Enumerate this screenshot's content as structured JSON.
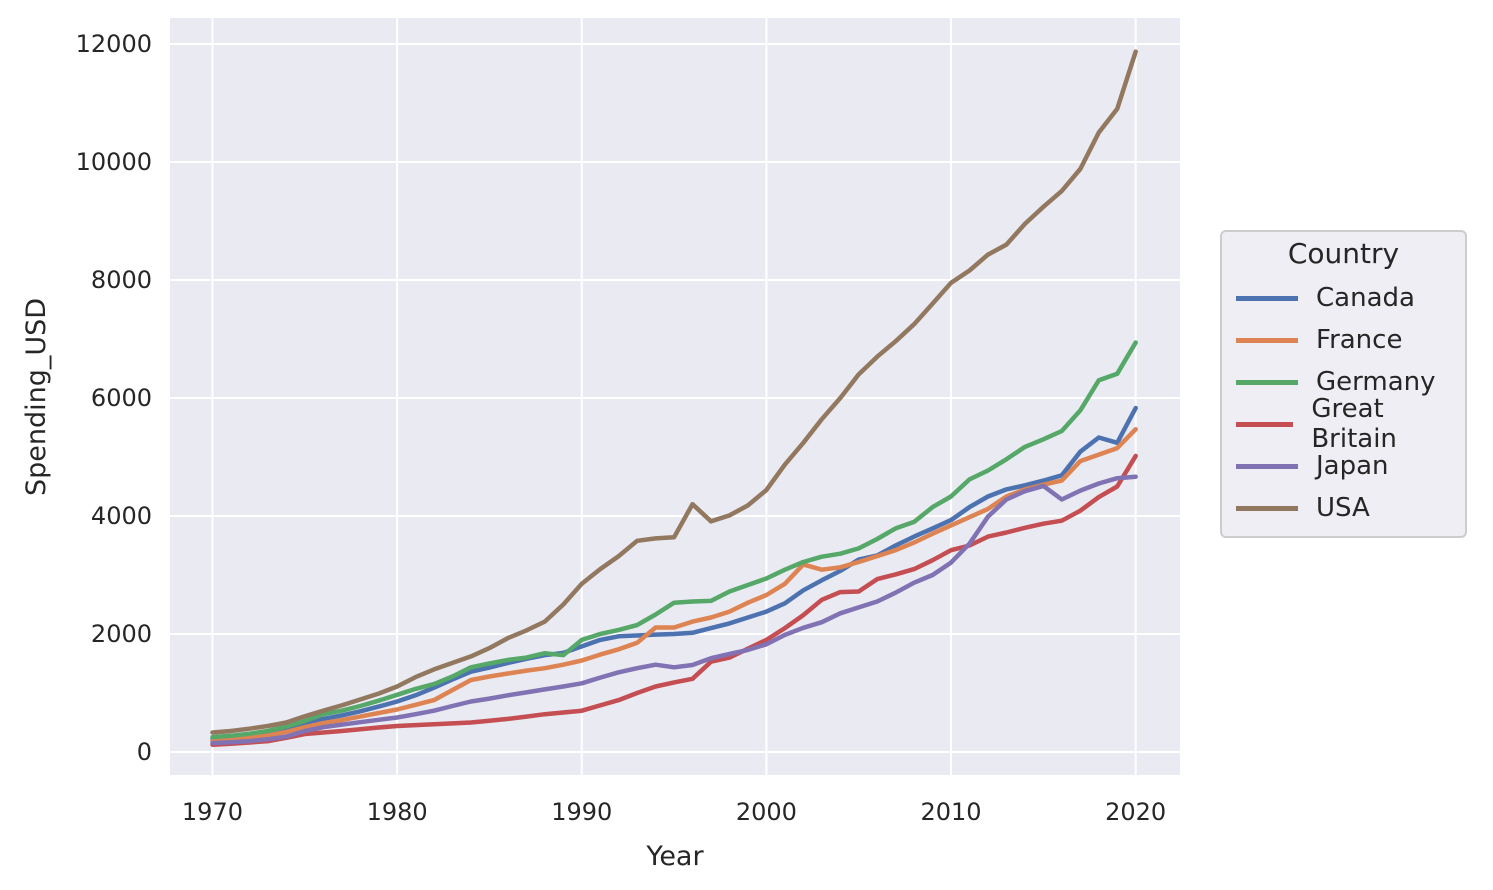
{
  "style": {
    "figure_bg": "#ffffff",
    "plot_bg": "#eaeaf2",
    "grid_color": "#ffffff",
    "text_color": "#262626",
    "legend_bg": "#eeeef4",
    "legend_border": "#cccccc",
    "line_width": 4.5
  },
  "chart_data": {
    "type": "line",
    "title": "",
    "xlabel": "Year",
    "ylabel": "Spending_USD",
    "legend": {
      "title": "Country",
      "position": "right-outside"
    },
    "grid": true,
    "x_ticks": [
      1970,
      1980,
      1990,
      2000,
      2010,
      2020
    ],
    "y_ticks": [
      0,
      2000,
      4000,
      6000,
      8000,
      10000,
      12000
    ],
    "xlim": [
      1967.7,
      2022.4
    ],
    "ylim": [
      -390,
      12440
    ],
    "x": [
      1970,
      1971,
      1972,
      1973,
      1974,
      1975,
      1976,
      1977,
      1978,
      1979,
      1980,
      1981,
      1982,
      1983,
      1984,
      1985,
      1986,
      1987,
      1988,
      1989,
      1990,
      1991,
      1992,
      1993,
      1994,
      1995,
      1996,
      1997,
      1998,
      1999,
      2000,
      2001,
      2002,
      2003,
      2004,
      2005,
      2006,
      2007,
      2008,
      2009,
      2010,
      2011,
      2012,
      2013,
      2014,
      2015,
      2016,
      2017,
      2018,
      2019,
      2020
    ],
    "series": [
      {
        "name": "Canada",
        "color": "#4c72b0",
        "values": [
          220,
          245,
          275,
          315,
          390,
          480,
          560,
          620,
          690,
          770,
          855,
          960,
          1090,
          1230,
          1360,
          1430,
          1510,
          1580,
          1640,
          1680,
          1790,
          1900,
          1960,
          1975,
          1990,
          2000,
          2020,
          2100,
          2180,
          2280,
          2380,
          2520,
          2740,
          2910,
          3070,
          3260,
          3330,
          3500,
          3650,
          3790,
          3930,
          4150,
          4330,
          4450,
          4520,
          4600,
          4690,
          5090,
          5330,
          5240,
          5830
        ]
      },
      {
        "name": "France",
        "color": "#dd8452",
        "values": [
          192,
          215,
          245,
          280,
          340,
          420,
          490,
          540,
          600,
          660,
          720,
          800,
          880,
          1050,
          1220,
          1280,
          1330,
          1380,
          1420,
          1480,
          1550,
          1650,
          1740,
          1850,
          2110,
          2110,
          2210,
          2280,
          2380,
          2530,
          2660,
          2850,
          3180,
          3090,
          3130,
          3220,
          3320,
          3420,
          3550,
          3700,
          3840,
          3980,
          4120,
          4330,
          4450,
          4530,
          4600,
          4930,
          5040,
          5150,
          5470
        ]
      },
      {
        "name": "Germany",
        "color": "#55a868",
        "values": [
          252,
          275,
          310,
          355,
          430,
          525,
          640,
          700,
          780,
          870,
          970,
          1070,
          1150,
          1280,
          1435,
          1500,
          1560,
          1600,
          1675,
          1640,
          1900,
          2000,
          2070,
          2150,
          2330,
          2530,
          2550,
          2560,
          2720,
          2830,
          2940,
          3090,
          3220,
          3310,
          3360,
          3450,
          3610,
          3790,
          3900,
          4150,
          4330,
          4620,
          4770,
          4960,
          5170,
          5300,
          5440,
          5790,
          6300,
          6410,
          6940
        ]
      },
      {
        "name": "Great Britain",
        "color": "#c44e52",
        "values": [
          124,
          140,
          160,
          185,
          240,
          305,
          330,
          355,
          385,
          415,
          440,
          455,
          470,
          485,
          500,
          530,
          560,
          600,
          640,
          670,
          700,
          790,
          880,
          1000,
          1110,
          1180,
          1240,
          1530,
          1600,
          1750,
          1900,
          2100,
          2320,
          2580,
          2710,
          2720,
          2930,
          3010,
          3100,
          3250,
          3420,
          3500,
          3650,
          3720,
          3800,
          3870,
          3920,
          4090,
          4320,
          4500,
          5019
        ]
      },
      {
        "name": "Japan",
        "color": "#8172b3",
        "values": [
          150,
          165,
          185,
          215,
          260,
          356,
          420,
          465,
          505,
          545,
          585,
          640,
          700,
          780,
          855,
          905,
          960,
          1010,
          1060,
          1110,
          1165,
          1260,
          1350,
          1420,
          1480,
          1435,
          1475,
          1590,
          1660,
          1730,
          1825,
          1985,
          2105,
          2200,
          2350,
          2450,
          2550,
          2700,
          2870,
          3000,
          3210,
          3530,
          3990,
          4280,
          4420,
          4510,
          4280,
          4430,
          4550,
          4640,
          4666
        ]
      },
      {
        "name": "USA",
        "color": "#937860",
        "values": [
          330,
          355,
          395,
          440,
          500,
          605,
          700,
          790,
          890,
          990,
          1110,
          1270,
          1400,
          1510,
          1620,
          1760,
          1930,
          2060,
          2210,
          2500,
          2850,
          3100,
          3320,
          3580,
          3620,
          3640,
          4200,
          3910,
          4010,
          4180,
          4440,
          4870,
          5240,
          5640,
          6000,
          6400,
          6700,
          6960,
          7250,
          7600,
          7950,
          8160,
          8430,
          8600,
          8950,
          9240,
          9510,
          9880,
          10500,
          10900,
          11870
        ]
      }
    ]
  }
}
